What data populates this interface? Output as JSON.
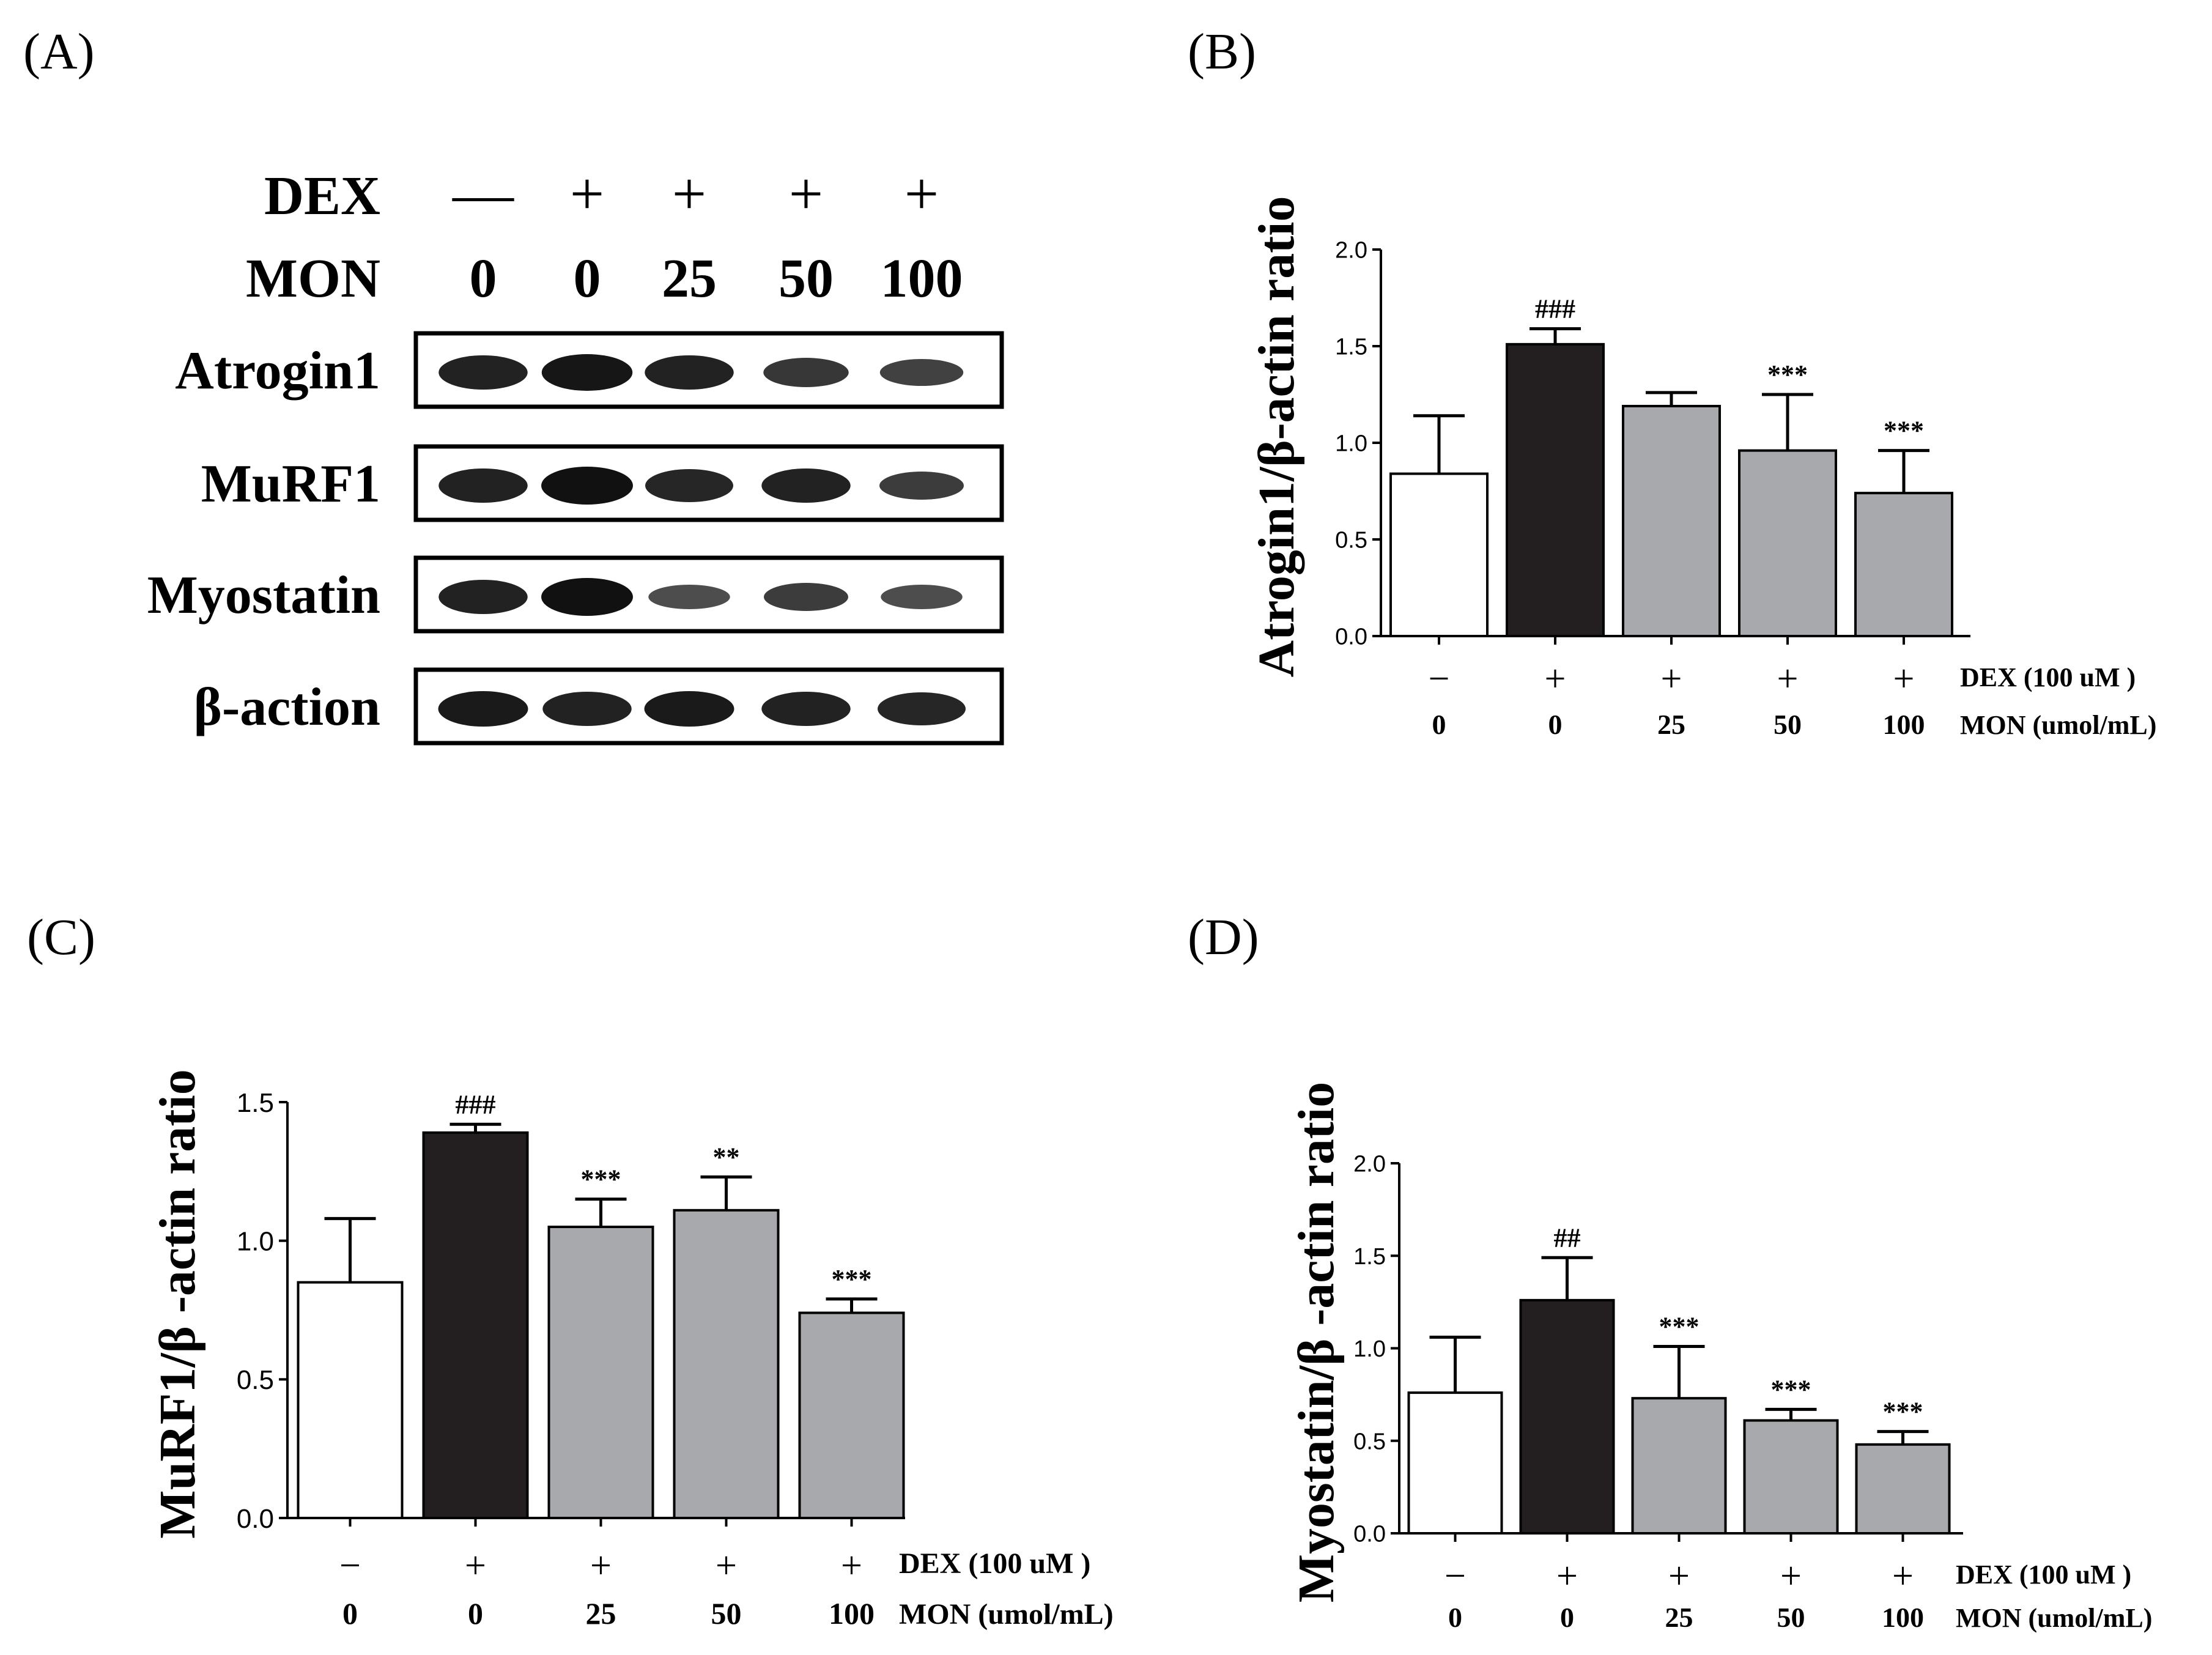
{
  "panel_labels": {
    "a": "(A)",
    "b": "(B)",
    "c": "(C)",
    "d": "(D)"
  },
  "blot": {
    "dex_label": "DEX",
    "mon_label": "MON",
    "dex_signs": [
      "—",
      "+",
      "+",
      "+",
      "+"
    ],
    "mon_values": [
      "0",
      "0",
      "25",
      "50",
      "100"
    ],
    "rows": [
      {
        "label": "Atrogin1",
        "intensity": [
          0.85,
          0.95,
          0.85,
          0.65,
          0.55
        ]
      },
      {
        "label": "MuRF1",
        "intensity": [
          0.85,
          1.0,
          0.8,
          0.85,
          0.6
        ]
      },
      {
        "label": "Myostatin",
        "intensity": [
          0.85,
          1.0,
          0.45,
          0.6,
          0.45
        ]
      },
      {
        "label": "β-action",
        "intensity": [
          0.9,
          0.85,
          0.9,
          0.85,
          0.8
        ]
      }
    ]
  },
  "colors": {
    "control": "#ffffff",
    "dex": "#231f20",
    "treated": "#a7a9ac",
    "ink": "#000000"
  },
  "chart_data": [
    {
      "id": "B",
      "type": "bar",
      "ylabel": "Atrogin1/β-actin ratio",
      "ylim": [
        0,
        2.0
      ],
      "ticks": [
        "0.0",
        "0.5",
        "1.0",
        "1.5",
        "2.0"
      ],
      "categories": [
        "0",
        "0",
        "25",
        "50",
        "100"
      ],
      "dex_signs": [
        "−",
        "+",
        "+",
        "+",
        "+"
      ],
      "row1_title": "DEX (100 uM )",
      "row2_title": "MON (umol/mL)",
      "values": [
        0.84,
        1.51,
        1.19,
        0.96,
        0.74
      ],
      "errors": [
        0.3,
        0.08,
        0.07,
        0.29,
        0.22
      ],
      "annotations": [
        "",
        "###",
        "",
        "***",
        "***"
      ],
      "fill": [
        "control",
        "dex",
        "treated",
        "treated",
        "treated"
      ]
    },
    {
      "id": "C",
      "type": "bar",
      "ylabel": "MuRF1/β -actin ratio",
      "ylim": [
        0,
        1.5
      ],
      "ticks": [
        "0.0",
        "0.5",
        "1.0",
        "1.5"
      ],
      "categories": [
        "0",
        "0",
        "25",
        "50",
        "100"
      ],
      "dex_signs": [
        "−",
        "+",
        "+",
        "+",
        "+"
      ],
      "row1_title": "DEX (100 uM )",
      "row2_title": "MON (umol/mL)",
      "values": [
        0.85,
        1.39,
        1.05,
        1.11,
        0.74
      ],
      "errors": [
        0.23,
        0.03,
        0.1,
        0.12,
        0.05
      ],
      "annotations": [
        "",
        "###",
        "***",
        "**",
        "***"
      ],
      "fill": [
        "control",
        "dex",
        "treated",
        "treated",
        "treated"
      ]
    },
    {
      "id": "D",
      "type": "bar",
      "ylabel": "Myostatin/β -actin ratio",
      "ylim": [
        0,
        2.0
      ],
      "ticks": [
        "0.0",
        "0.5",
        "1.0",
        "1.5",
        "2.0"
      ],
      "categories": [
        "0",
        "0",
        "25",
        "50",
        "100"
      ],
      "dex_signs": [
        "−",
        "+",
        "+",
        "+",
        "+"
      ],
      "row1_title": "DEX (100 uM )",
      "row2_title": "MON (umol/mL)",
      "values": [
        0.76,
        1.26,
        0.73,
        0.61,
        0.48
      ],
      "errors": [
        0.3,
        0.23,
        0.28,
        0.06,
        0.07
      ],
      "annotations": [
        "",
        "##",
        "***",
        "***",
        "***"
      ],
      "fill": [
        "control",
        "dex",
        "treated",
        "treated",
        "treated"
      ]
    }
  ]
}
